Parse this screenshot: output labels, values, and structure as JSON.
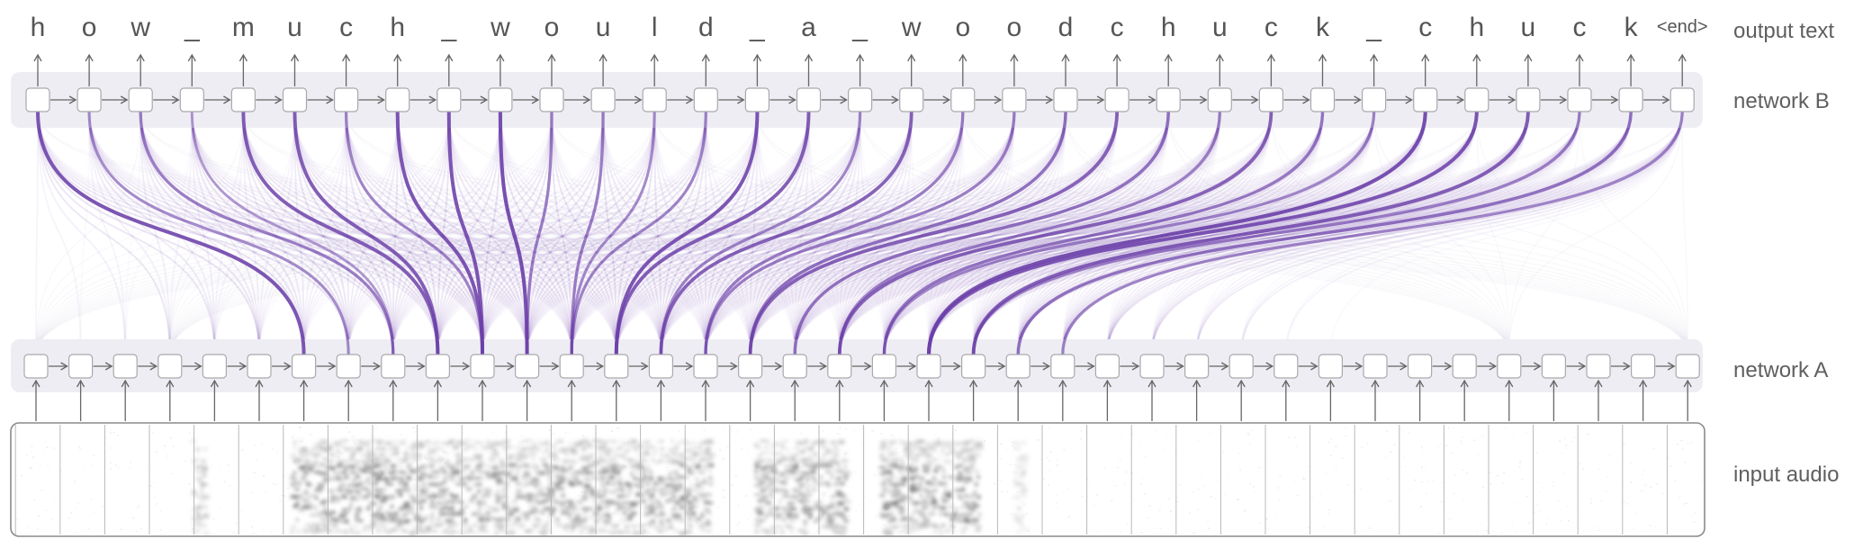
{
  "output_chars": [
    "h",
    "o",
    "w",
    "_",
    "m",
    "u",
    "c",
    "h",
    "_",
    "w",
    "o",
    "u",
    "l",
    "d",
    "_",
    "a",
    "_",
    "w",
    "o",
    "o",
    "d",
    "c",
    "h",
    "u",
    "c",
    "k",
    "_",
    "c",
    "h",
    "u",
    "c",
    "k",
    "<end>"
  ],
  "labels": {
    "output": "output text",
    "network_b": "network B",
    "network_a": "network A",
    "input": "input audio"
  },
  "input_frames": 38,
  "colors": {
    "attention": "#6b3fa8",
    "band": "#ededf3",
    "cell_border": "#a9a9ad",
    "arrow": "#666666",
    "text": "#555555"
  },
  "attention_map": [
    6,
    7,
    8,
    8,
    9,
    9,
    10,
    10,
    10,
    11,
    11,
    12,
    12,
    12,
    13,
    13,
    14,
    14,
    15,
    15,
    16,
    16,
    17,
    18,
    18,
    19,
    19,
    20,
    20,
    21,
    21,
    22,
    23
  ],
  "attention_strength": [
    0.9,
    0.5,
    0.6,
    0.4,
    0.85,
    0.85,
    0.55,
    0.9,
    0.9,
    0.95,
    0.6,
    0.6,
    0.5,
    0.55,
    0.9,
    0.85,
    0.55,
    0.8,
    0.6,
    0.6,
    0.7,
    0.8,
    0.7,
    0.6,
    0.8,
    0.65,
    0.55,
    0.95,
    0.9,
    0.85,
    0.6,
    0.7,
    0.55
  ]
}
